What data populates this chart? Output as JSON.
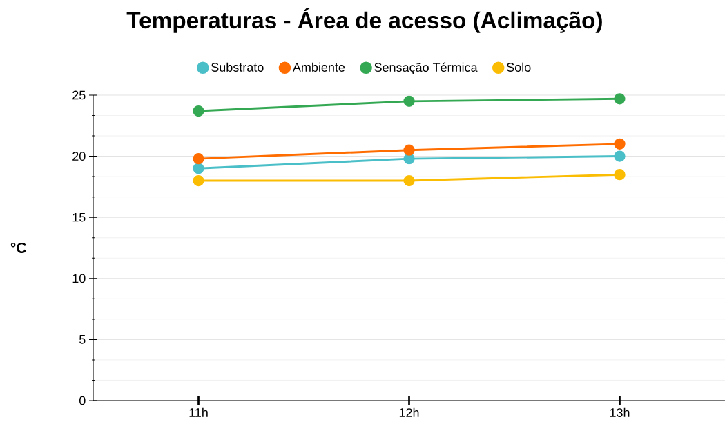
{
  "chart_data": {
    "type": "line",
    "title": "Temperaturas - Área de acesso (Aclimação)",
    "ylabel": "°C",
    "categories": [
      "11h",
      "12h",
      "13h"
    ],
    "series": [
      {
        "name": "Substrato",
        "color": "#4bbfc8",
        "values": [
          19,
          19.8,
          20
        ]
      },
      {
        "name": "Ambiente",
        "color": "#ff6d01",
        "values": [
          19.8,
          20.5,
          21
        ]
      },
      {
        "name": "Sensação Térmica",
        "color": "#34a853",
        "values": [
          23.7,
          24.5,
          24.7
        ]
      },
      {
        "name": "Solo",
        "color": "#fbbc04",
        "values": [
          18,
          18,
          18.5
        ]
      }
    ],
    "ylim": [
      0,
      25
    ],
    "yticks": [
      0,
      5,
      10,
      15,
      20,
      25
    ],
    "grid": "y",
    "legend": "top",
    "marker": "circle",
    "line_style": "solid"
  }
}
